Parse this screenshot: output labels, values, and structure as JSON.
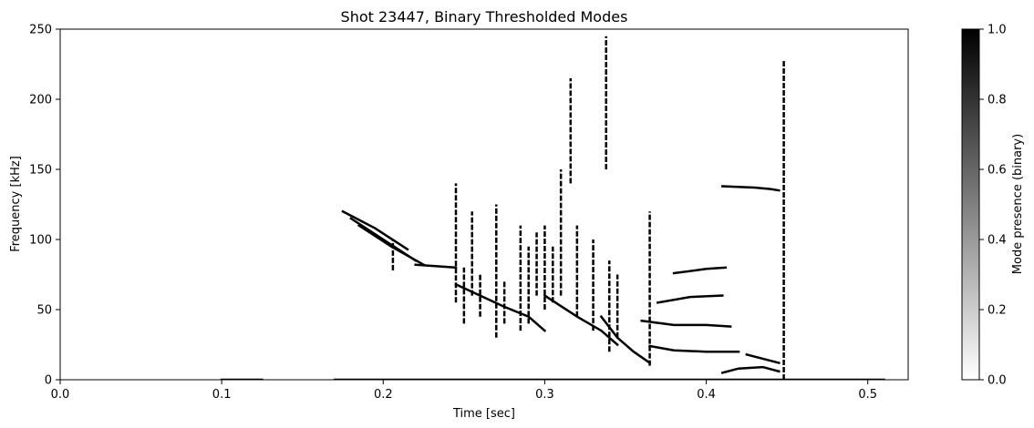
{
  "chart_data": {
    "type": "heatmap",
    "title": "Shot 23447, Binary Thresholded Modes",
    "xlabel": "Time [sec]",
    "ylabel": "Frequency [kHz]",
    "xlim": [
      0.0,
      0.525
    ],
    "ylim": [
      0,
      250
    ],
    "x_ticks": [
      "0.0",
      "0.1",
      "0.2",
      "0.3",
      "0.4",
      "0.5"
    ],
    "y_ticks": [
      "0",
      "50",
      "100",
      "150",
      "200",
      "250"
    ],
    "grid": false,
    "colormap": "gray_r",
    "colors": {
      "low": "#ffffff",
      "high": "#000000"
    },
    "colorbar": {
      "label": "Mode presence (binary)",
      "range": [
        0.0,
        1.0
      ],
      "ticks": [
        "0.0",
        "0.2",
        "0.4",
        "0.6",
        "0.8",
        "1.0"
      ]
    },
    "mode_tracks": [
      {
        "t": [
          0.1,
          0.125
        ],
        "f": [
          0,
          0
        ]
      },
      {
        "t": [
          0.17,
          0.51
        ],
        "f": [
          0,
          0
        ]
      },
      {
        "t": [
          0.175,
          0.195,
          0.215
        ],
        "f": [
          120,
          108,
          93
        ]
      },
      {
        "t": [
          0.18,
          0.2,
          0.22
        ],
        "f": [
          115,
          100,
          85
        ]
      },
      {
        "t": [
          0.185,
          0.205,
          0.225
        ],
        "f": [
          110,
          95,
          82
        ]
      },
      {
        "t": [
          0.22,
          0.245
        ],
        "f": [
          82,
          80
        ]
      },
      {
        "t": [
          0.245,
          0.26,
          0.275,
          0.29,
          0.3
        ],
        "f": [
          68,
          60,
          52,
          45,
          35
        ]
      },
      {
        "t": [
          0.3,
          0.32,
          0.335,
          0.345
        ],
        "f": [
          60,
          45,
          35,
          25
        ]
      },
      {
        "t": [
          0.335,
          0.345,
          0.355,
          0.365
        ],
        "f": [
          45,
          30,
          20,
          12
        ]
      },
      {
        "t": [
          0.36,
          0.38,
          0.4,
          0.415
        ],
        "f": [
          42,
          39,
          39,
          38
        ]
      },
      {
        "t": [
          0.365,
          0.38,
          0.4,
          0.42
        ],
        "f": [
          24,
          21,
          20,
          20
        ]
      },
      {
        "t": [
          0.37,
          0.39,
          0.41
        ],
        "f": [
          55,
          59,
          60
        ]
      },
      {
        "t": [
          0.38,
          0.4,
          0.412
        ],
        "f": [
          76,
          79,
          80
        ]
      },
      {
        "t": [
          0.41,
          0.43,
          0.44,
          0.445
        ],
        "f": [
          138,
          137,
          136,
          135
        ]
      },
      {
        "t": [
          0.41,
          0.42,
          0.435,
          0.445
        ],
        "f": [
          5,
          8,
          9,
          6
        ]
      },
      {
        "t": [
          0.425,
          0.435,
          0.445
        ],
        "f": [
          18,
          15,
          12
        ]
      }
    ],
    "vertical_bands": [
      {
        "t": 0.206,
        "f": [
          78,
          100
        ]
      },
      {
        "t": 0.245,
        "f": [
          55,
          140
        ]
      },
      {
        "t": 0.25,
        "f": [
          40,
          80
        ]
      },
      {
        "t": 0.255,
        "f": [
          60,
          120
        ]
      },
      {
        "t": 0.26,
        "f": [
          45,
          75
        ]
      },
      {
        "t": 0.27,
        "f": [
          30,
          125
        ]
      },
      {
        "t": 0.275,
        "f": [
          40,
          70
        ]
      },
      {
        "t": 0.285,
        "f": [
          35,
          110
        ]
      },
      {
        "t": 0.29,
        "f": [
          40,
          95
        ]
      },
      {
        "t": 0.295,
        "f": [
          60,
          105
        ]
      },
      {
        "t": 0.3,
        "f": [
          50,
          110
        ]
      },
      {
        "t": 0.305,
        "f": [
          55,
          95
        ]
      },
      {
        "t": 0.31,
        "f": [
          60,
          150
        ]
      },
      {
        "t": 0.32,
        "f": [
          45,
          110
        ]
      },
      {
        "t": 0.33,
        "f": [
          35,
          100
        ]
      },
      {
        "t": 0.34,
        "f": [
          20,
          85
        ]
      },
      {
        "t": 0.345,
        "f": [
          30,
          75
        ]
      },
      {
        "t": 0.365,
        "f": [
          10,
          120
        ]
      },
      {
        "t": 0.448,
        "f": [
          0,
          228
        ]
      },
      {
        "t": 0.338,
        "f": [
          150,
          245
        ]
      },
      {
        "t": 0.316,
        "f": [
          140,
          215
        ]
      }
    ]
  }
}
